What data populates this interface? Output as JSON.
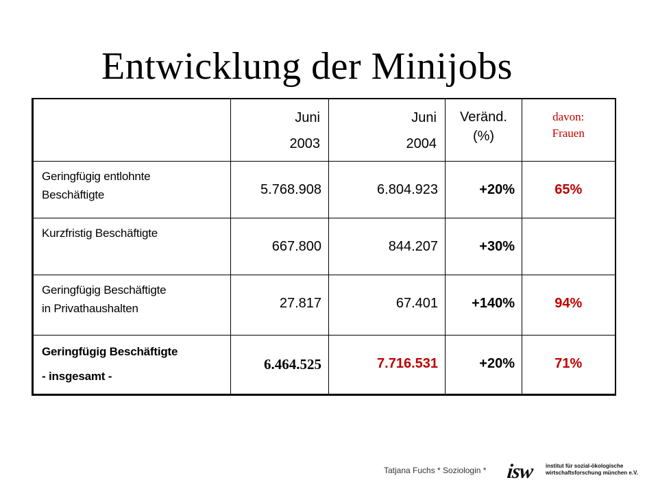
{
  "title": "Entwicklung der Minijobs",
  "table": {
    "headers": {
      "col1_line1": "Juni",
      "col1_line2": "2003",
      "col2_line1": "Juni",
      "col2_line2": "2004",
      "col3_line1": "Veränd.",
      "col3_line2": "(%)",
      "col4_line1": "davon:",
      "col4_line2": "Frauen"
    },
    "rows": [
      {
        "label_line1": "Geringfügig entlohnte",
        "label_line2": "Beschäftigte",
        "v2003": "5.768.908",
        "v2004": "6.804.923",
        "change": "+20%",
        "women": "65%"
      },
      {
        "label_line1": "Kurzfristig Beschäftigte",
        "label_line2": "",
        "v2003": "667.800",
        "v2004": "844.207",
        "change": "+30%",
        "women": ""
      },
      {
        "label_line1": "Geringfügig Beschäftigte",
        "label_line2": "in Privathaushalten",
        "v2003": "27.817",
        "v2004": "67.401",
        "change": "+140%",
        "women": "94%"
      },
      {
        "label_line1": "Geringfügig Beschäftigte",
        "label_line2": "- insgesamt -",
        "v2003": "6.464.525",
        "v2004": "7.716.531",
        "change": "+20%",
        "women": "71%"
      }
    ]
  },
  "footer": {
    "author": "Tatjana Fuchs * Soziologin *",
    "logo_mark": "isw",
    "logo_line1": "institut für sozial-ökologische",
    "logo_line2": "wirtschaftsforschung münchen e.V."
  },
  "colors": {
    "accent_red": "#c00000"
  }
}
